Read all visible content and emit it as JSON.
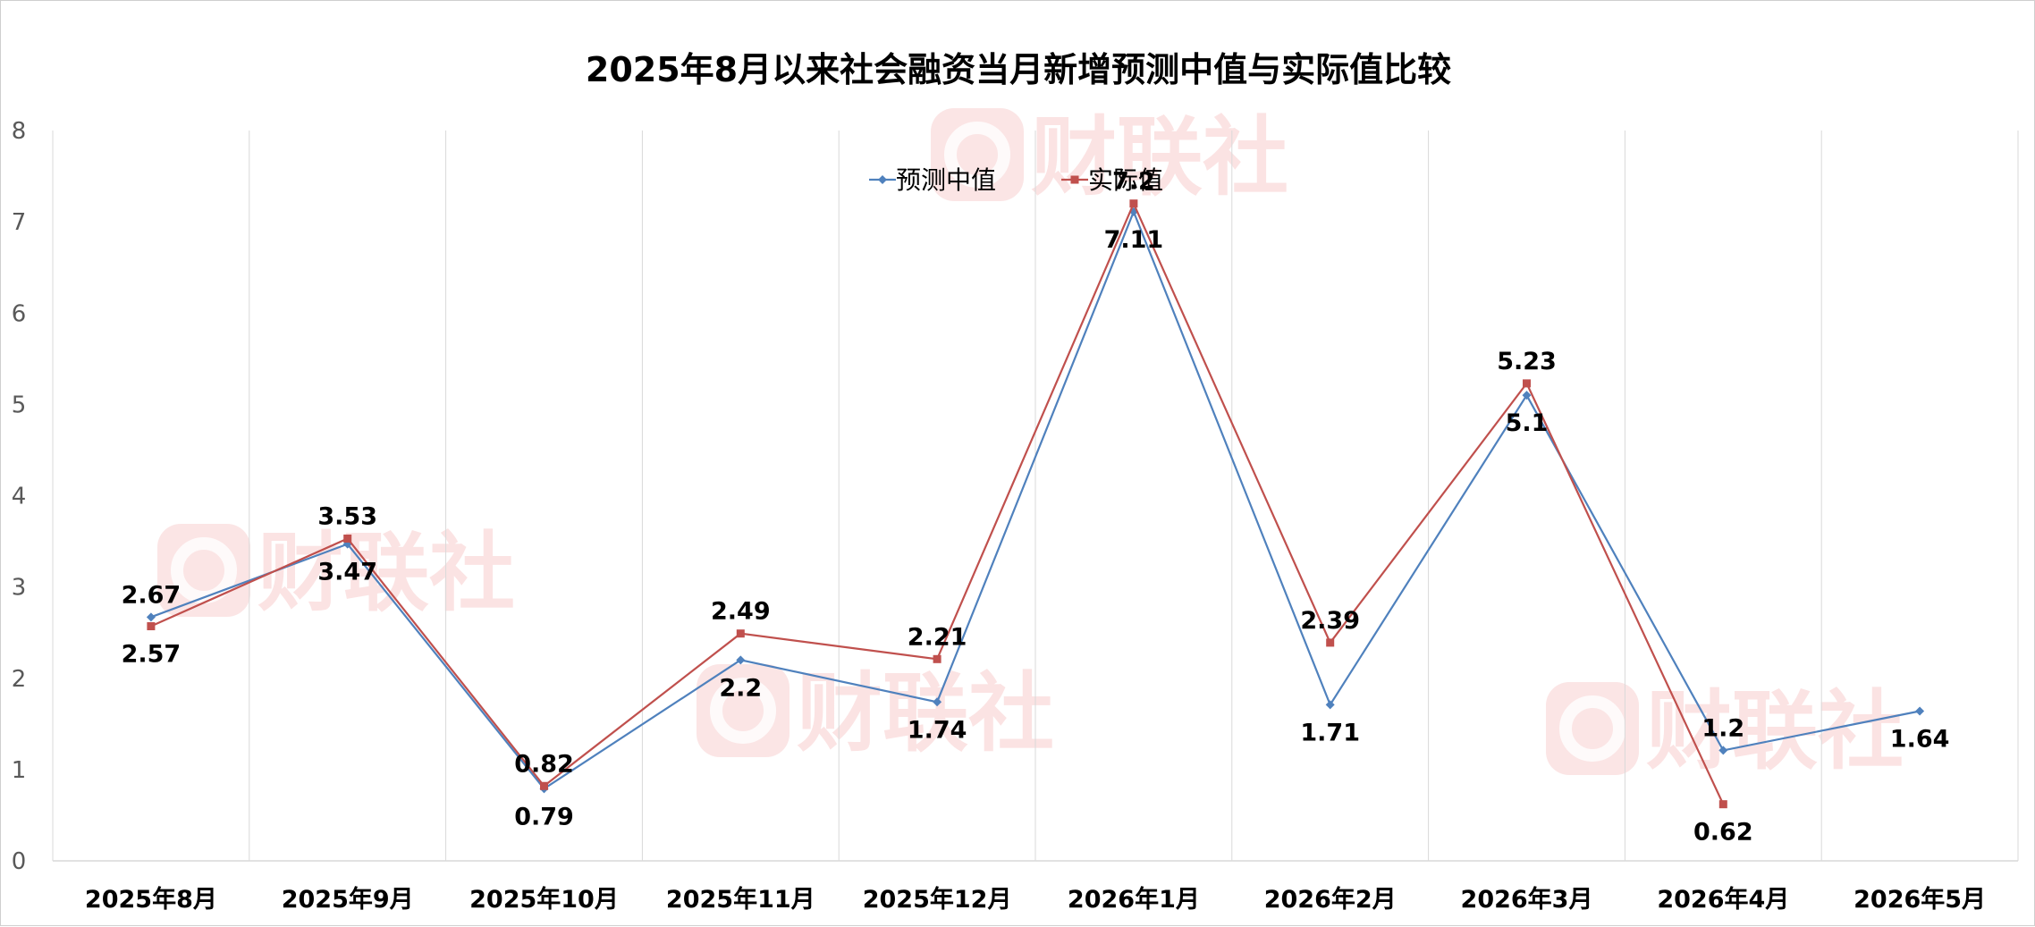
{
  "chart_data": {
    "type": "line",
    "title": "2025年8月以来社会融资当月新增预测中值与实际值比较",
    "categories": [
      "2025年8月",
      "2025年9月",
      "2025年10月",
      "2025年11月",
      "2025年12月",
      "2026年1月",
      "2026年2月",
      "2026年3月",
      "2026年4月",
      "2026年5月"
    ],
    "ylim": [
      0,
      8
    ],
    "yticks": [
      0,
      1,
      2,
      3,
      4,
      5,
      6,
      7,
      8
    ],
    "grid": "vertical",
    "legend_position": "top-center",
    "series": [
      {
        "name": "预测中值",
        "color": "#4f81bd",
        "marker": "diamond",
        "values": [
          2.67,
          3.47,
          0.79,
          2.2,
          1.74,
          7.11,
          1.71,
          5.1,
          1.21,
          1.64
        ],
        "labels": [
          "2.67",
          "3.47",
          "0.79",
          "2.2",
          "1.74",
          "7.11",
          "1.71",
          "5.1",
          "1.2",
          "1.64"
        ]
      },
      {
        "name": "实际值",
        "color": "#c0504d",
        "marker": "square",
        "values": [
          2.57,
          3.53,
          0.82,
          2.49,
          2.21,
          7.2,
          2.39,
          5.23,
          0.62,
          null
        ],
        "labels": [
          "2.57",
          "3.53",
          "0.82",
          "2.49",
          "2.21",
          "7.2",
          "2.39",
          "5.23",
          "0.62",
          ""
        ]
      }
    ]
  },
  "watermark": {
    "text": "财联社",
    "icon": "cls-logo-icon",
    "color": "#f6c6c6"
  }
}
